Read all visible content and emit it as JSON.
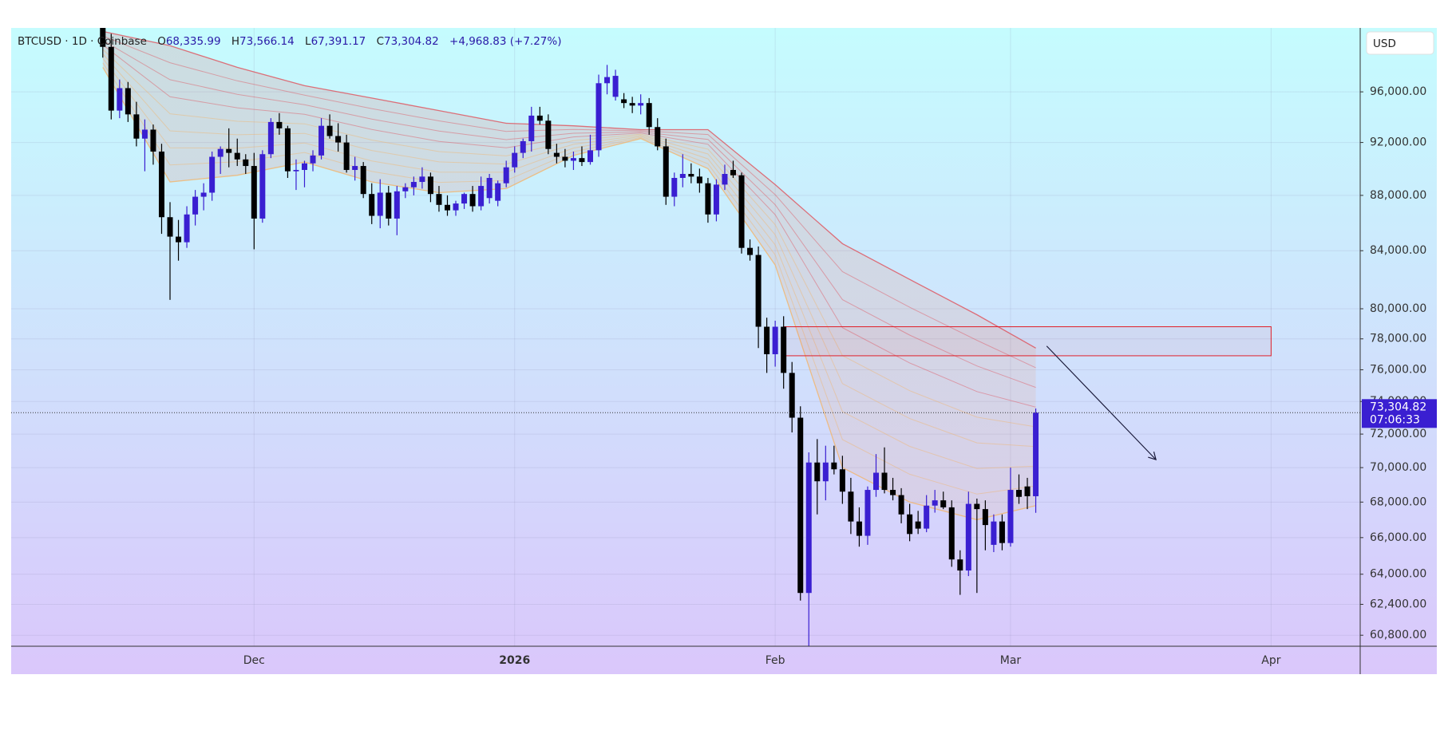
{
  "chart_data": {
    "type": "candlestick",
    "header": {
      "symbol": "BTCUSD · 1D · Coinbase",
      "fields": [
        {
          "key": "O",
          "value": "68,335.99"
        },
        {
          "key": "H",
          "value": "73,566.14"
        },
        {
          "key": "L",
          "value": "67,391.17"
        },
        {
          "key": "C",
          "value": "73,304.82"
        }
      ],
      "change": "+4,968.83 (+7.27%)"
    },
    "currency": "USD",
    "last_price": {
      "label": "73,304.82",
      "countdown": "07:06:33"
    },
    "up_color": "#3a1fd1",
    "down_color": "#000000",
    "log_scale": true,
    "grid": true,
    "xlim": [
      -28.9,
      131.6
    ],
    "xticks": [
      {
        "value": 0,
        "label": "Dec"
      },
      {
        "value": 31,
        "label": "2026"
      },
      {
        "value": 62,
        "label": "Feb"
      },
      {
        "value": 90,
        "label": "Mar"
      },
      {
        "value": 121,
        "label": "Apr"
      }
    ],
    "ylim": [
      60240,
      101300
    ],
    "yticks": [
      {
        "value": 96000,
        "label": "96,000.00"
      },
      {
        "value": 92000,
        "label": "92,000.00"
      },
      {
        "value": 88000,
        "label": "88,000.00"
      },
      {
        "value": 84000,
        "label": "84,000.00"
      },
      {
        "value": 80000,
        "label": "80,000.00"
      },
      {
        "value": 78000,
        "label": "78,000.00"
      },
      {
        "value": 76000,
        "label": "76,000.00"
      },
      {
        "value": 74000,
        "label": "74,000.00"
      },
      {
        "value": 72000,
        "label": "72,000.00"
      },
      {
        "value": 70000,
        "label": "70,000.00"
      },
      {
        "value": 68000,
        "label": "68,000.00"
      },
      {
        "value": 66000,
        "label": "66,000.00"
      },
      {
        "value": 64000,
        "label": "64,000.00"
      },
      {
        "value": 62400,
        "label": "62,400.00"
      },
      {
        "value": 60800,
        "label": "60,800.00"
      }
    ],
    "x": [
      -18,
      -17,
      -16,
      -15,
      -14,
      -13,
      -12,
      -11,
      -10,
      -9,
      -8,
      -7,
      -6,
      -5,
      -4,
      -3,
      -2,
      -1,
      0,
      1,
      2,
      3,
      4,
      5,
      6,
      7,
      8,
      9,
      10,
      11,
      12,
      13,
      14,
      15,
      16,
      17,
      18,
      19,
      20,
      21,
      22,
      23,
      24,
      25,
      26,
      27,
      28,
      29,
      30,
      31,
      32,
      33,
      34,
      35,
      36,
      37,
      38,
      39,
      40,
      41,
      42,
      43,
      44,
      45,
      46,
      47,
      48,
      49,
      50,
      51,
      52,
      53,
      54,
      55,
      56,
      57,
      58,
      59,
      60,
      61,
      62,
      63,
      64,
      65,
      66,
      67,
      68,
      69,
      70,
      71,
      72,
      73,
      74,
      75,
      76,
      77,
      78,
      79,
      80,
      81,
      82,
      83,
      84,
      85,
      86,
      87,
      88,
      89,
      90,
      91,
      92,
      93
    ],
    "open": [
      103000,
      99700,
      94500,
      96300,
      94200,
      92300,
      93000,
      91300,
      86400,
      85000,
      84600,
      86600,
      87900,
      88200,
      90900,
      91500,
      91200,
      90700,
      90200,
      86300,
      91100,
      93600,
      93100,
      89800,
      89900,
      90400,
      91000,
      93300,
      92500,
      92000,
      89900,
      90200,
      88100,
      86500,
      88200,
      86300,
      88300,
      88600,
      89000,
      89400,
      88100,
      87300,
      86900,
      87400,
      88100,
      87200,
      87800,
      87600,
      88900,
      90100,
      91200,
      92100,
      94100,
      93700,
      91200,
      90900,
      90600,
      90800,
      90500,
      91400,
      96700,
      95600,
      95400,
      95100,
      94900,
      95100,
      93200,
      91700,
      87900,
      89300,
      89600,
      89400,
      88900,
      86600,
      88800,
      89900,
      89500,
      84200,
      83700,
      78800,
      77000,
      78800,
      75800,
      73000,
      63000,
      70300,
      69200,
      70300,
      69900,
      68600,
      66900,
      66100,
      68700,
      69700,
      68700,
      68400,
      67300,
      66900,
      66500,
      67800,
      68100,
      67700,
      64800,
      64200,
      67900,
      67600,
      65600,
      66900,
      65700,
      68700,
      68900,
      68335.99
    ],
    "high": [
      105000,
      100800,
      97000,
      96800,
      95200,
      93800,
      93400,
      91900,
      87500,
      86200,
      87200,
      88400,
      88900,
      91300,
      91700,
      93100,
      92300,
      91100,
      91200,
      91400,
      93900,
      94300,
      93300,
      90700,
      90600,
      91400,
      93900,
      94200,
      93500,
      92600,
      90900,
      90500,
      88900,
      89200,
      88700,
      88700,
      88900,
      89400,
      90100,
      89700,
      88700,
      88000,
      87600,
      88200,
      88700,
      89400,
      89600,
      89100,
      90600,
      91700,
      92300,
      94800,
      94800,
      94200,
      91900,
      91500,
      91300,
      91700,
      92600,
      97400,
      98200,
      97800,
      95900,
      95600,
      95800,
      95500,
      93900,
      92300,
      89700,
      91100,
      90400,
      90000,
      89300,
      89200,
      90300,
      90600,
      89700,
      84800,
      84300,
      79400,
      79200,
      79500,
      76500,
      73700,
      70900,
      71700,
      71300,
      71300,
      70700,
      69400,
      67700,
      68900,
      70800,
      71200,
      69400,
      68800,
      67900,
      67500,
      68400,
      68700,
      68600,
      68100,
      65300,
      68600,
      68200,
      68100,
      67300,
      67300,
      70000,
      69600,
      69400,
      73566.14
    ],
    "low": [
      98800,
      93800,
      93900,
      93600,
      91700,
      89800,
      90300,
      85200,
      80600,
      83300,
      84200,
      85800,
      86900,
      87600,
      89600,
      90100,
      90200,
      89600,
      84100,
      86000,
      90800,
      92600,
      89300,
      88400,
      88600,
      89800,
      90700,
      92300,
      91300,
      89700,
      89100,
      87800,
      85900,
      85600,
      85800,
      85100,
      87800,
      88000,
      88500,
      87500,
      86800,
      86500,
      86500,
      87000,
      86800,
      86900,
      87400,
      87200,
      88600,
      89700,
      90800,
      91300,
      93400,
      91100,
      90400,
      90100,
      89900,
      90200,
      90300,
      90900,
      95800,
      95300,
      94700,
      94300,
      94200,
      92600,
      91400,
      87300,
      87200,
      88600,
      88900,
      88200,
      86000,
      86100,
      88400,
      89300,
      83800,
      83300,
      77400,
      75800,
      76200,
      74800,
      72100,
      62600,
      60250,
      67300,
      68100,
      69600,
      67900,
      66200,
      65500,
      65600,
      68300,
      68500,
      68100,
      66800,
      65800,
      66200,
      66300,
      67400,
      67600,
      64400,
      62900,
      63900,
      63000,
      65300,
      65200,
      65300,
      65500,
      67900,
      67600,
      67391.17
    ],
    "close": [
      99700,
      94500,
      96300,
      94200,
      92300,
      93000,
      91300,
      86400,
      85000,
      84600,
      86600,
      87900,
      88200,
      90900,
      91500,
      91200,
      90700,
      90200,
      86300,
      91100,
      93600,
      93100,
      89800,
      89900,
      90400,
      91000,
      93300,
      92500,
      92000,
      89900,
      90200,
      88100,
      86500,
      88200,
      86300,
      88300,
      88600,
      89000,
      89400,
      88100,
      87300,
      86900,
      87400,
      88100,
      87200,
      88700,
      89300,
      88900,
      90100,
      91200,
      92100,
      94100,
      93700,
      91500,
      90900,
      90600,
      90800,
      90500,
      91400,
      96700,
      97200,
      97300,
      95100,
      94900,
      95100,
      93200,
      91700,
      87900,
      89300,
      89600,
      89400,
      88900,
      86600,
      88800,
      89600,
      89500,
      84200,
      83700,
      78800,
      77000,
      78800,
      75800,
      73000,
      63000,
      70300,
      69200,
      70300,
      69900,
      68600,
      66900,
      66100,
      68700,
      69700,
      68700,
      68400,
      67300,
      66200,
      66500,
      67800,
      68100,
      67700,
      64800,
      64200,
      67900,
      67600,
      66700,
      66900,
      65700,
      68700,
      68300,
      68336,
      73304.82
    ],
    "ribbon": {
      "x": [
        -18,
        -10,
        -2,
        6,
        14,
        22,
        30,
        38,
        46,
        54,
        62,
        70,
        78,
        86,
        93
      ],
      "upper": [
        101000,
        99800,
        98000,
        96500,
        95500,
        94500,
        93500,
        93300,
        93000,
        93000,
        88800,
        84500,
        82000,
        79600,
        77400
      ],
      "lower": [
        98000,
        89000,
        89500,
        90500,
        89000,
        88200,
        88500,
        91000,
        92300,
        90000,
        83000,
        70000,
        68000,
        67000,
        67800
      ],
      "upper_color": "#e0505a",
      "lower_color": "#f2b46a"
    },
    "zone": {
      "x": [
        63,
        121
      ],
      "y": [
        76900,
        78800
      ],
      "color": "#e0202a"
    },
    "arrow": {
      "x": [
        94.3,
        107.3
      ],
      "y": [
        77530,
        70470
      ],
      "color": "#1a1a3a"
    }
  }
}
